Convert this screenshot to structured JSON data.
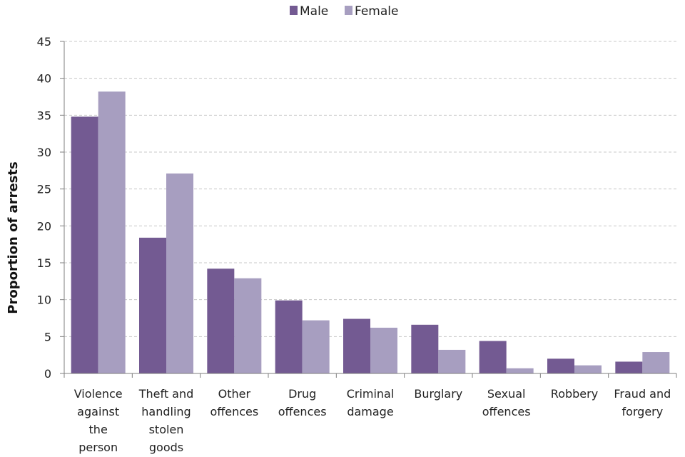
{
  "chart_data": {
    "type": "bar",
    "title": "",
    "xlabel": "",
    "ylabel": "Proportion of arrests",
    "ylim": [
      0,
      45
    ],
    "yticks": [
      0,
      5,
      10,
      15,
      20,
      25,
      30,
      35,
      40,
      45
    ],
    "grid": true,
    "legend_position": "top-center",
    "categories": [
      [
        "Violence",
        "against",
        "the",
        "person"
      ],
      [
        "Theft and",
        "handling",
        "stolen",
        "goods"
      ],
      [
        "Other",
        "offences"
      ],
      [
        "Drug",
        "offences"
      ],
      [
        "Criminal",
        "damage"
      ],
      [
        "Burglary"
      ],
      [
        "Sexual",
        "offences"
      ],
      [
        "Robbery"
      ],
      [
        "Fraud and",
        "forgery"
      ]
    ],
    "series": [
      {
        "name": "Male",
        "color": "#735a92",
        "values": [
          34.8,
          18.4,
          14.2,
          9.9,
          7.4,
          6.6,
          4.4,
          2.0,
          1.6
        ]
      },
      {
        "name": "Female",
        "color": "#a79ec0",
        "values": [
          38.2,
          27.1,
          12.9,
          7.2,
          6.2,
          3.2,
          0.7,
          1.1,
          2.9
        ]
      }
    ]
  }
}
